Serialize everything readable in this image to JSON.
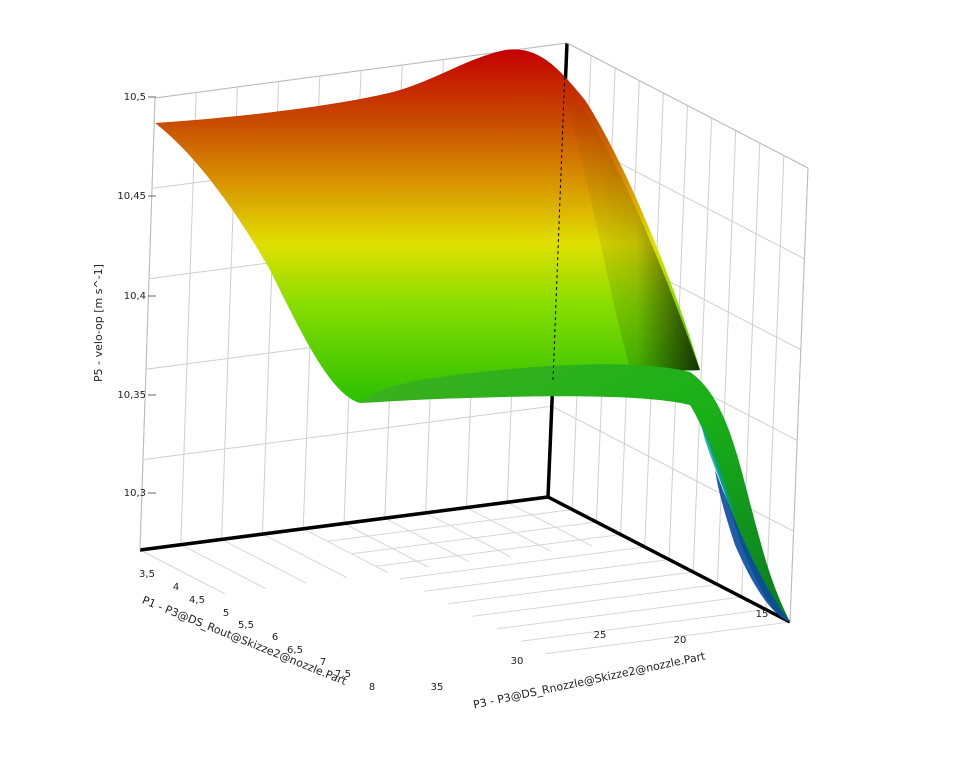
{
  "chart_data": {
    "type": "surface",
    "xlabel": "P1 - P3@DS_Rout@Skizze2@nozzle.Part",
    "ylabel": "P3 - P3@DS_Rnozzle@Skizze2@nozzle.Part",
    "zlabel": "P5 - velo-op  [m s^-1]",
    "x_ticks": [
      "3,5",
      "4",
      "4,5",
      "5",
      "5,5",
      "6",
      "6,5",
      "7",
      "7,5",
      "8"
    ],
    "y_ticks": [
      "35",
      "30",
      "25",
      "20",
      "15"
    ],
    "z_ticks": [
      "10,5",
      "10,45",
      "10,4",
      "10,35",
      "10,3"
    ],
    "xlim": [
      3.5,
      8
    ],
    "ylim": [
      12,
      37
    ],
    "zlim": [
      10.27,
      10.5
    ],
    "grid": true,
    "colormap": [
      "#001a8c",
      "#00c0c0",
      "#00c000",
      "#e0e000",
      "#e07000",
      "#c80000"
    ],
    "surface_profile": {
      "y": [
        37,
        33,
        30,
        27,
        24,
        22,
        20,
        18,
        16,
        14,
        12
      ],
      "z": [
        10.33,
        10.345,
        10.35,
        10.355,
        10.36,
        10.36,
        10.355,
        10.34,
        10.31,
        10.28,
        10.255
      ],
      "edge_at_x_3_5": [
        10.49,
        10.47,
        10.44,
        10.41,
        10.385,
        10.365,
        10.355,
        10.345
      ],
      "edge_at_y_12": [
        10.5,
        10.49,
        10.46,
        10.42,
        10.38,
        10.34,
        10.3,
        10.255
      ]
    }
  }
}
